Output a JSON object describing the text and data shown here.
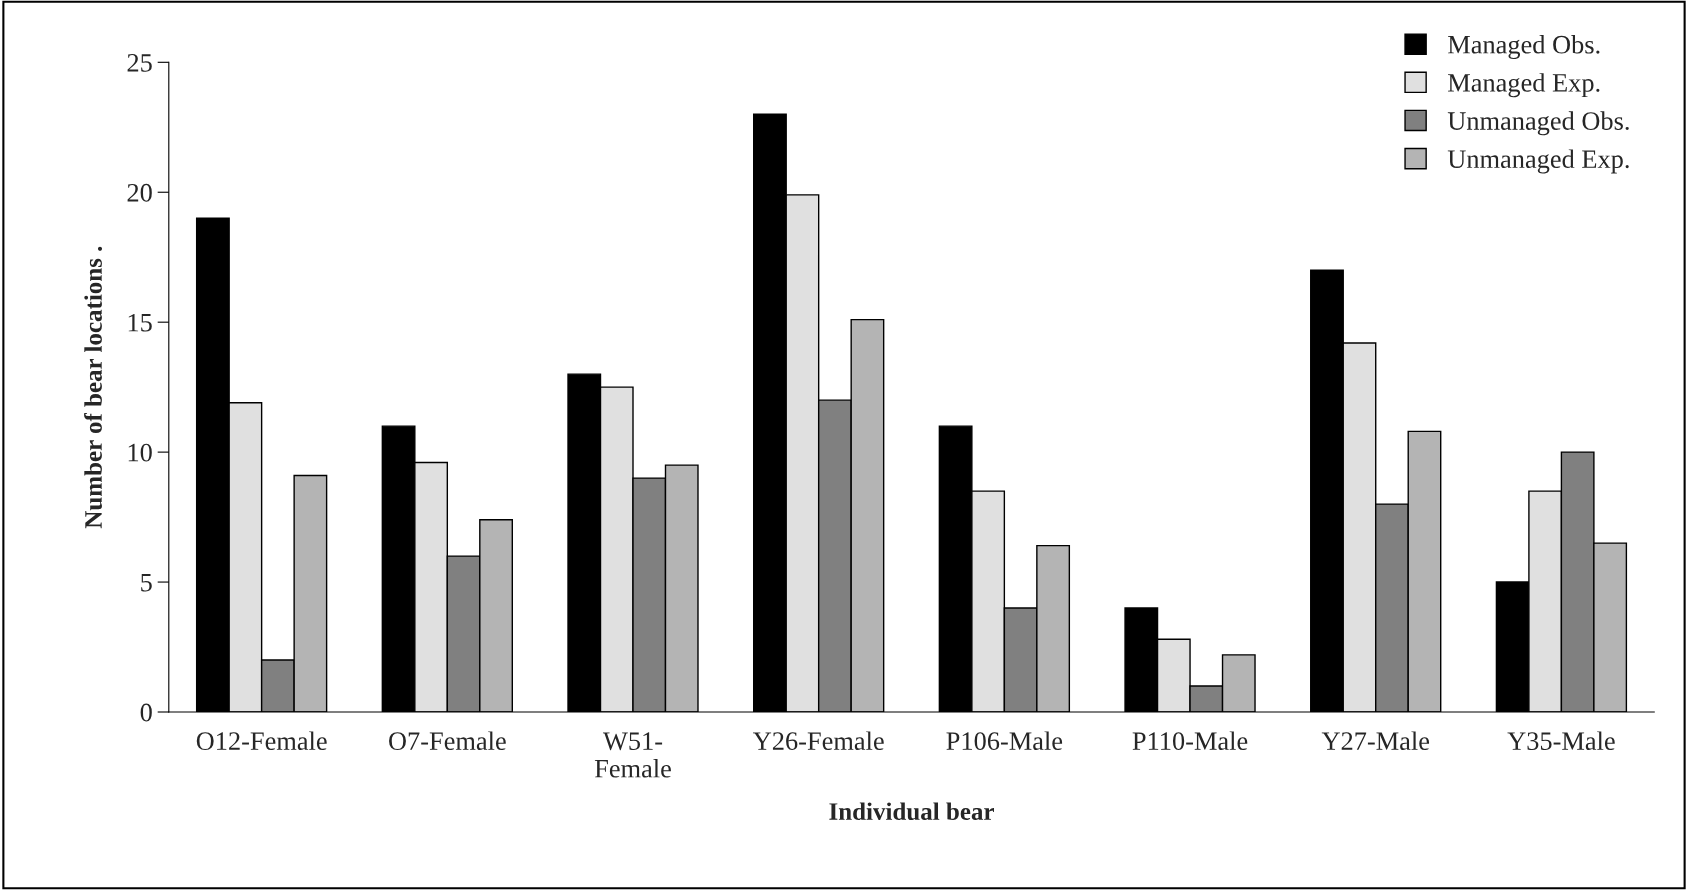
{
  "chart_data": {
    "type": "bar",
    "xlabel": "Individual bear",
    "ylabel": "Number of bear locations .",
    "categories": [
      "O12-Female",
      "O7-Female",
      "W51-\nFemale",
      "Y26-Female",
      "P106-Male",
      "P110-Male",
      "Y27-Male",
      "Y35-Male"
    ],
    "series": [
      {
        "name": "Managed Obs.",
        "color": "#000000",
        "values": [
          19,
          11,
          13,
          23,
          11,
          4,
          17,
          5
        ]
      },
      {
        "name": "Managed Exp.",
        "color": "#e0e0e0",
        "values": [
          11.9,
          9.6,
          12.5,
          19.9,
          8.5,
          2.8,
          14.2,
          8.5
        ]
      },
      {
        "name": "Unmanaged Obs.",
        "color": "#808080",
        "values": [
          2,
          6,
          9,
          12,
          4,
          1,
          8,
          10
        ]
      },
      {
        "name": "Unmanaged Exp.",
        "color": "#b4b4b4",
        "values": [
          9.1,
          7.4,
          9.5,
          15.1,
          6.4,
          2.2,
          10.8,
          6.5
        ]
      }
    ],
    "ylim": [
      0,
      25
    ],
    "yticks": [
      0,
      5,
      10,
      15,
      20,
      25
    ],
    "grid": false,
    "legend": "top right"
  }
}
